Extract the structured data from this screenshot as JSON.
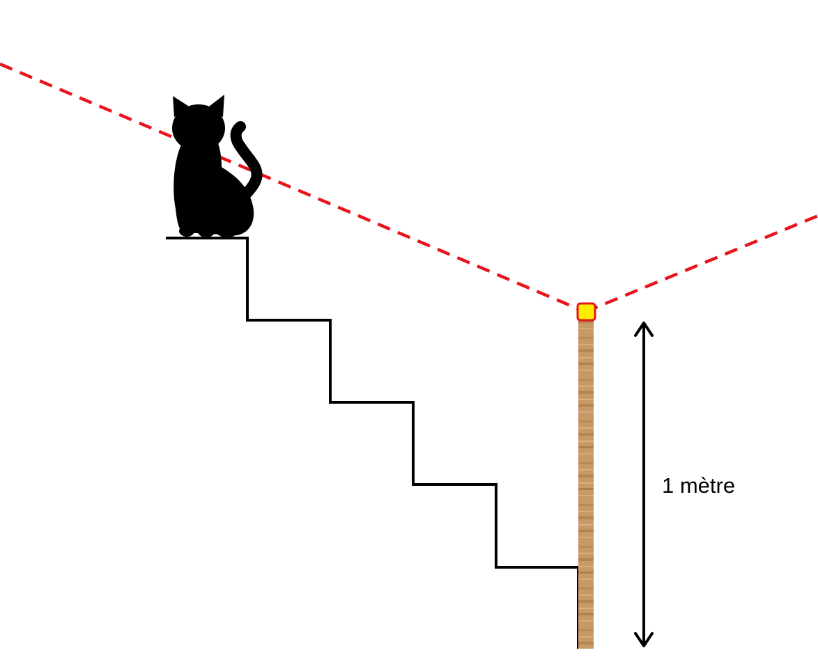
{
  "diagram": {
    "measurement_label": "1 mètre",
    "colors": {
      "laser_line": "#e8141c",
      "marker_fill": "#ffec00",
      "marker_stroke": "#e8141c",
      "cat": "#000000",
      "stairs": "#000000",
      "post_wood": "#c89866",
      "arrow": "#000000"
    },
    "elements": {
      "cat": "cat-silhouette-icon",
      "stairs": "staircase",
      "post": "wooden-post",
      "marker": "yellow-square-marker",
      "arrow": "double-headed-arrow"
    }
  }
}
